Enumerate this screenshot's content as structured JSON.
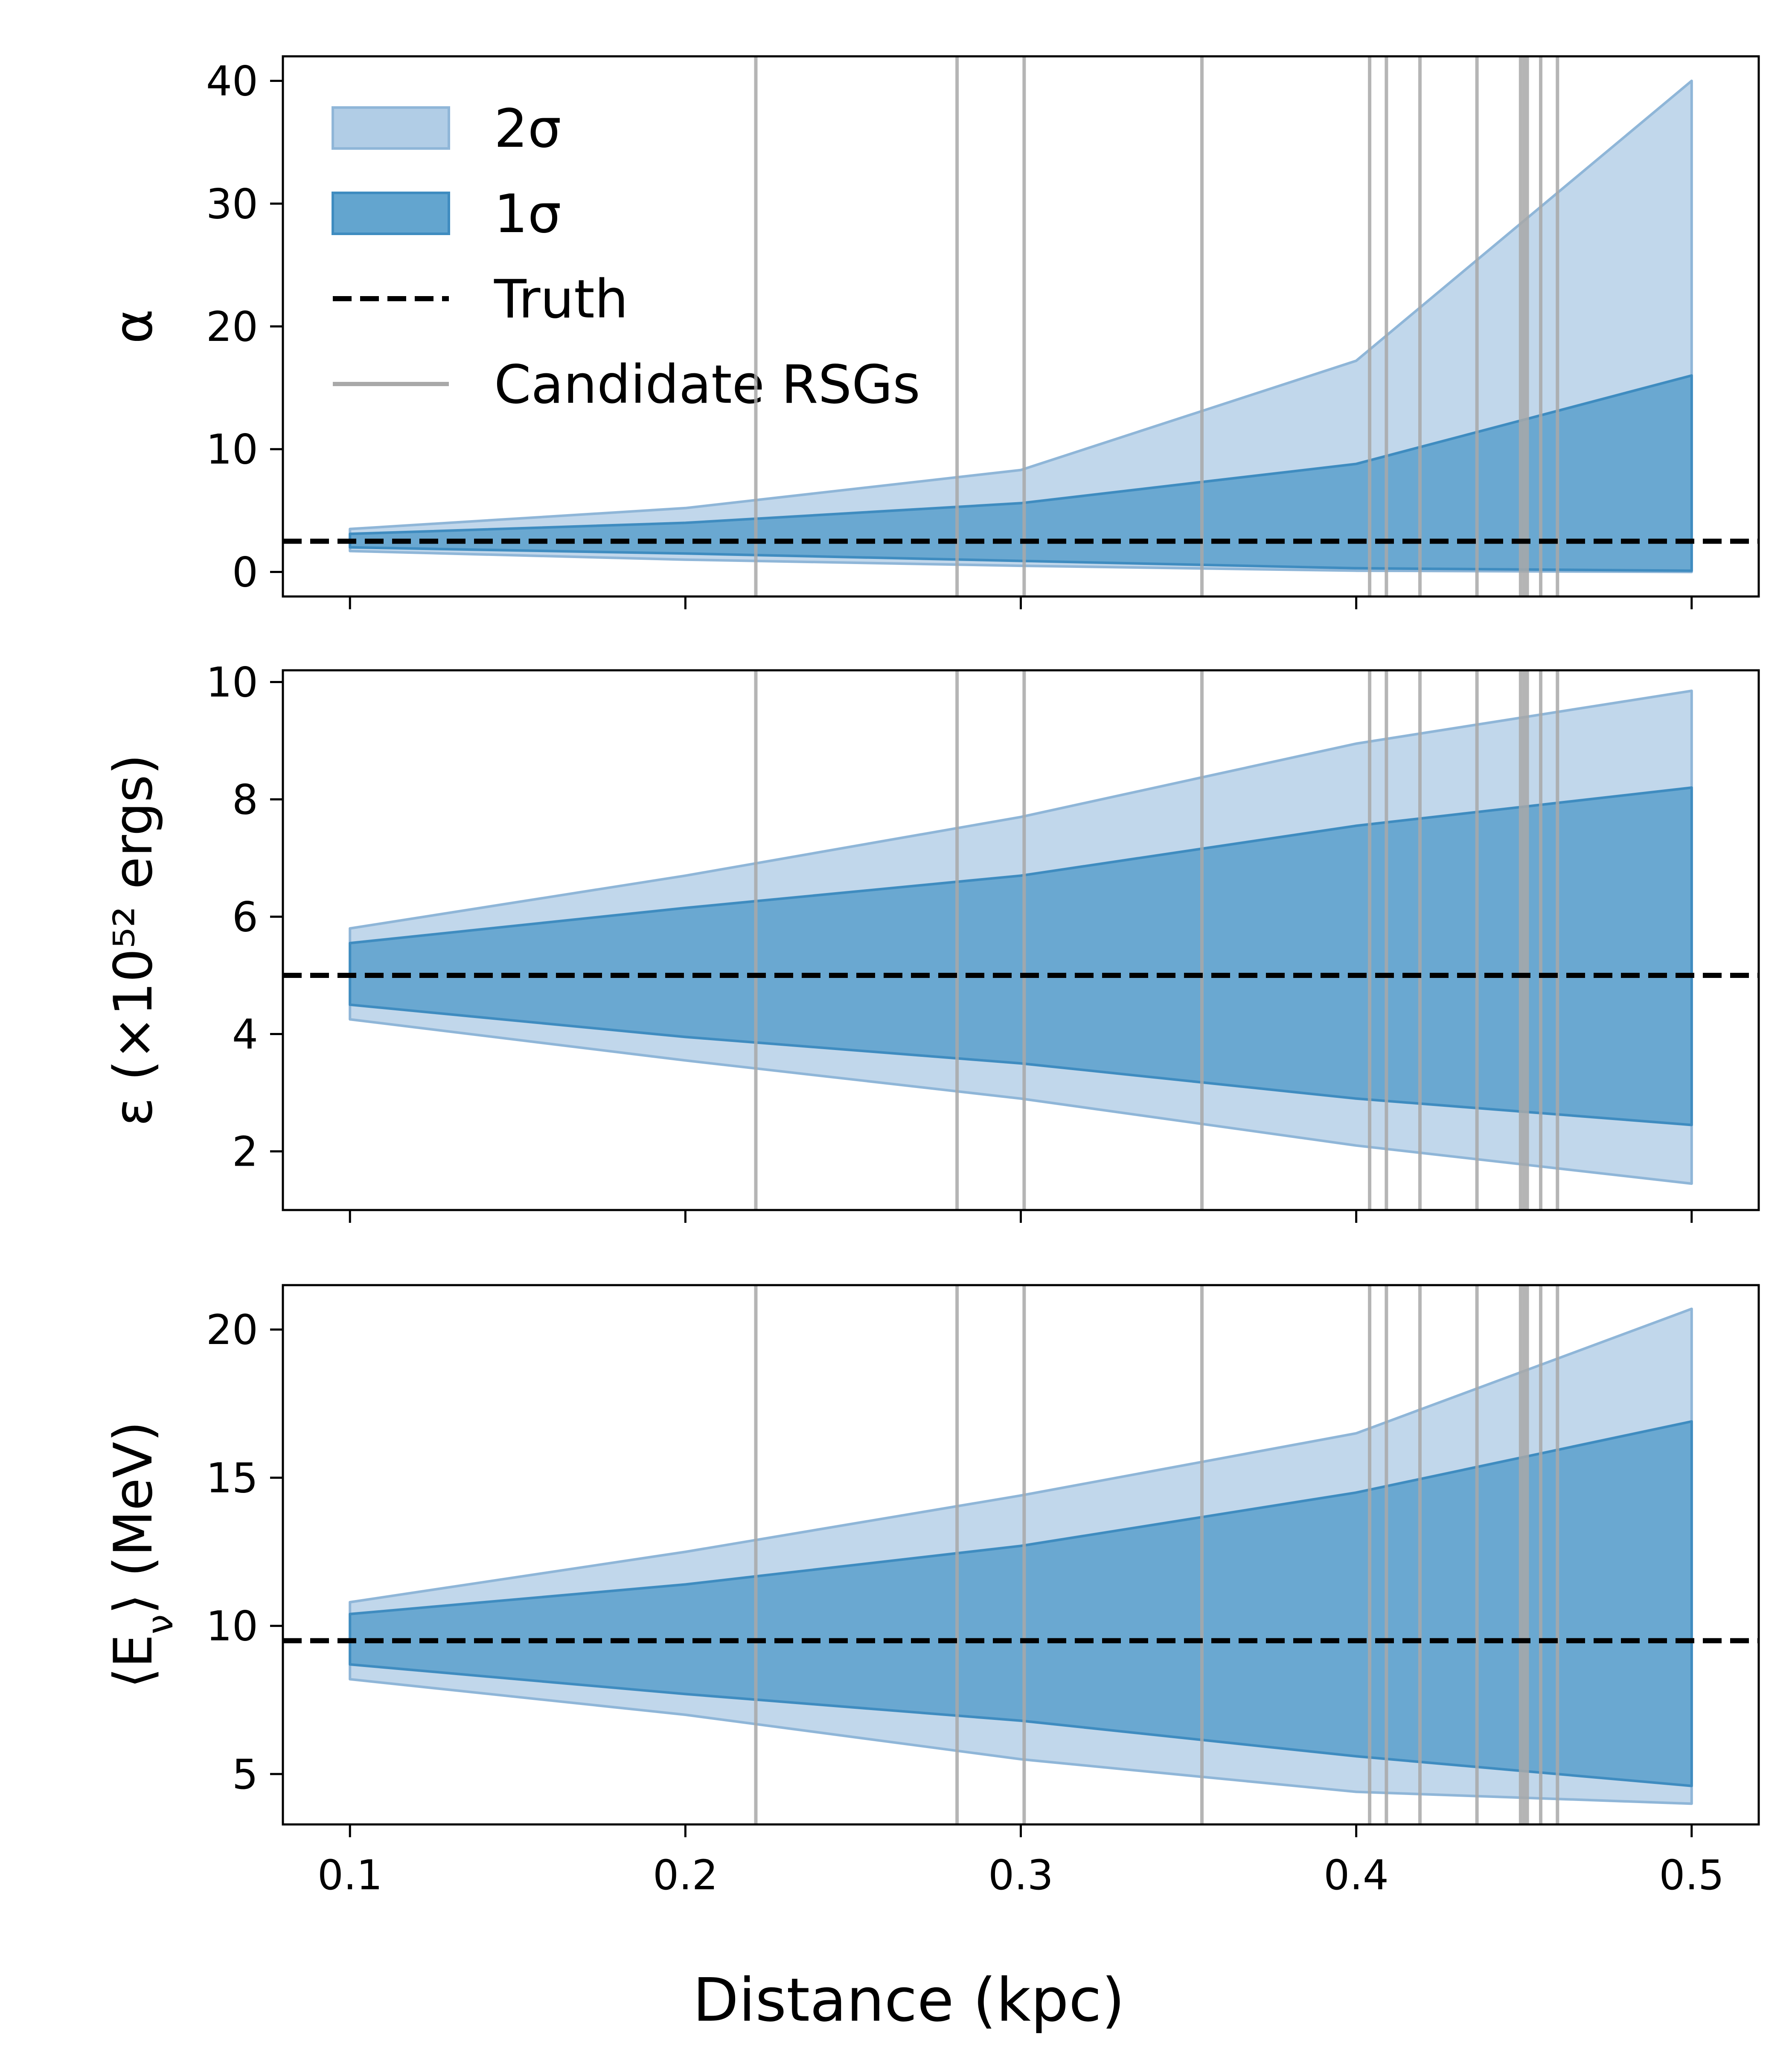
{
  "chart_data": {
    "type": "area",
    "xlabel": "Distance (kpc)",
    "xlim": [
      0.08,
      0.52
    ],
    "x": [
      0.1,
      0.2,
      0.3,
      0.4,
      0.5
    ],
    "x_ticks": [
      0.1,
      0.2,
      0.3,
      0.4,
      0.5
    ],
    "x_tick_labels": [
      "0.1",
      "0.2",
      "0.3",
      "0.4",
      "0.5"
    ],
    "candidate_rsg_distances": [
      0.221,
      0.281,
      0.301,
      0.354,
      0.404,
      0.409,
      0.419,
      0.436,
      0.449,
      0.45,
      0.451,
      0.455,
      0.46
    ],
    "colors": {
      "band_2sigma": "#a9c8e3",
      "band_1sigma": "#5ba0cc",
      "truth": "#000000",
      "candidate": "#a8a8a8"
    },
    "legend": {
      "placement": "top-left",
      "entries": [
        {
          "label": "2σ",
          "kind": "band_2sigma"
        },
        {
          "label": "1σ",
          "kind": "band_1sigma"
        },
        {
          "label": "Truth",
          "kind": "truth"
        },
        {
          "label": "Candidate RSGs",
          "kind": "candidate"
        }
      ]
    },
    "panels": [
      {
        "name": "alpha",
        "ylabel": "α",
        "ylim": [
          -2,
          42
        ],
        "y_ticks": [
          0,
          10,
          20,
          30,
          40
        ],
        "y_tick_labels": [
          "0",
          "10",
          "20",
          "30",
          "40"
        ],
        "truth": 2.5,
        "series": [
          {
            "name": "2σ",
            "lower": [
              1.7,
              1.0,
              0.5,
              0.1,
              0.0
            ],
            "upper": [
              3.5,
              5.2,
              8.3,
              17.2,
              40.0
            ]
          },
          {
            "name": "1σ",
            "lower": [
              2.0,
              1.5,
              0.9,
              0.3,
              0.1
            ],
            "upper": [
              3.1,
              4.0,
              5.6,
              8.8,
              16.0
            ]
          }
        ]
      },
      {
        "name": "epsilon",
        "ylabel": "ε (×10⁵² ergs)",
        "ylim": [
          1.0,
          10.2
        ],
        "y_ticks": [
          2,
          4,
          6,
          8,
          10
        ],
        "y_tick_labels": [
          "2",
          "4",
          "6",
          "8",
          "10"
        ],
        "truth": 5.0,
        "series": [
          {
            "name": "2σ",
            "lower": [
              4.25,
              3.55,
              2.9,
              2.1,
              1.45
            ],
            "upper": [
              5.8,
              6.7,
              7.7,
              8.95,
              9.85
            ]
          },
          {
            "name": "1σ",
            "lower": [
              4.5,
              3.95,
              3.5,
              2.9,
              2.45
            ],
            "upper": [
              5.55,
              6.15,
              6.7,
              7.55,
              8.2
            ]
          }
        ]
      },
      {
        "name": "mean-energy",
        "ylabel": "⟨E_ν⟩ (MeV)",
        "ylim": [
          3.3,
          21.5
        ],
        "y_ticks": [
          5,
          10,
          15,
          20
        ],
        "y_tick_labels": [
          "5",
          "10",
          "15",
          "20"
        ],
        "truth": 9.5,
        "series": [
          {
            "name": "2σ",
            "lower": [
              8.2,
              7.0,
              5.5,
              4.4,
              4.0
            ],
            "upper": [
              10.8,
              12.5,
              14.4,
              16.5,
              20.7
            ]
          },
          {
            "name": "1σ",
            "lower": [
              8.7,
              7.7,
              6.8,
              5.6,
              4.6
            ],
            "upper": [
              10.4,
              11.4,
              12.7,
              14.5,
              16.9
            ]
          }
        ]
      }
    ]
  }
}
